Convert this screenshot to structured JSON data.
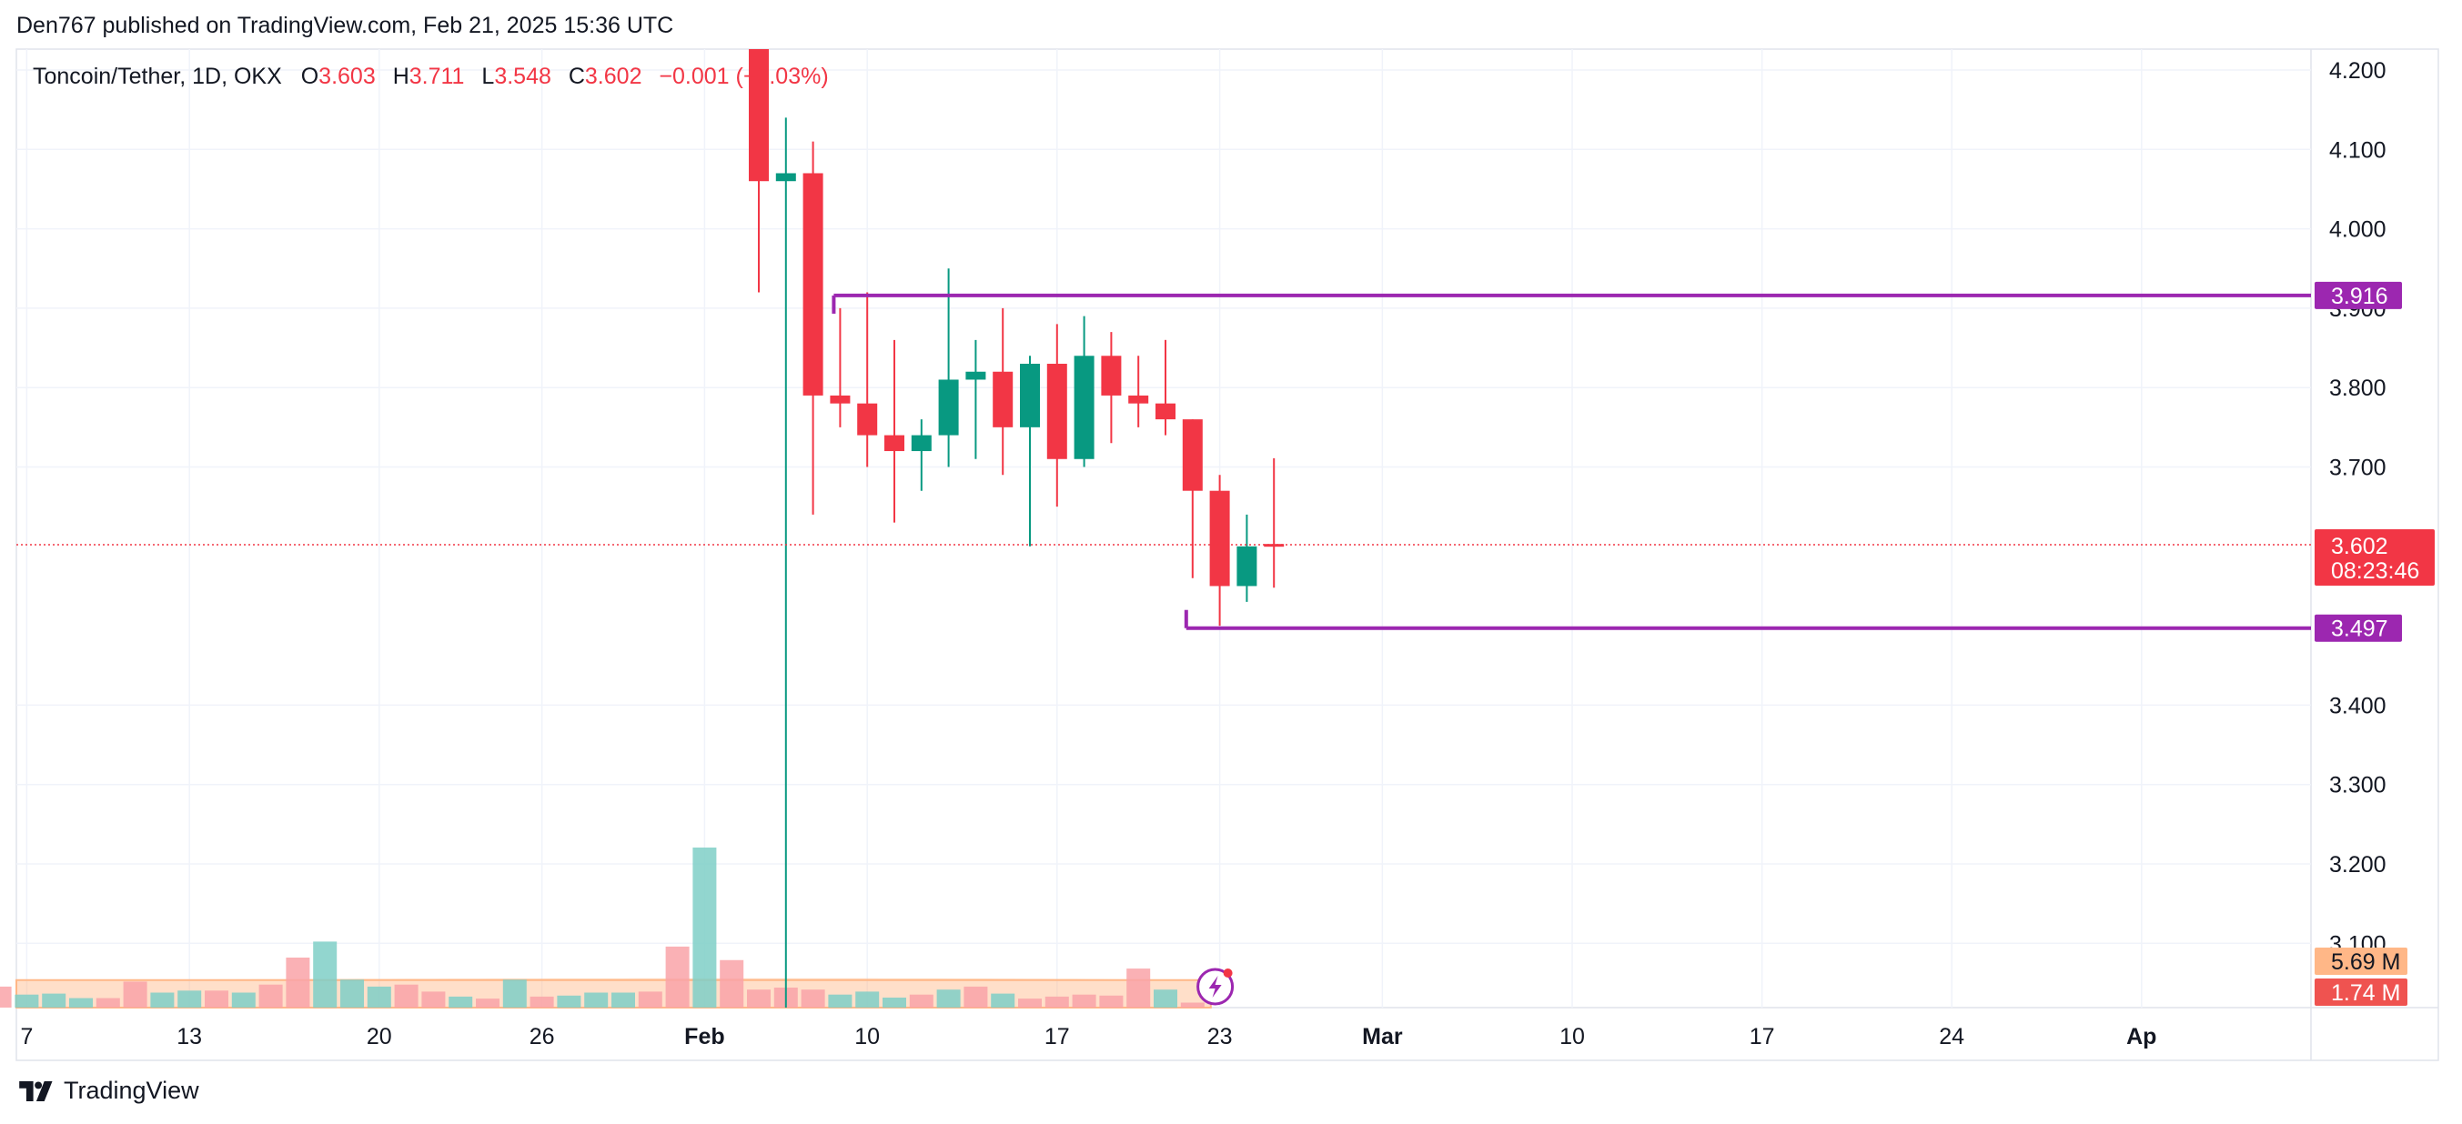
{
  "header": {
    "published": "Den767 published on TradingView.com, Feb 21, 2025 15:36 UTC"
  },
  "legend": {
    "symbol": "Toncoin/Tether, 1D, OKX",
    "o_label": "O",
    "o_value": "3.603",
    "h_label": "H",
    "h_value": "3.711",
    "l_label": "L",
    "l_value": "3.548",
    "c_label": "C",
    "c_value": "3.602",
    "change": "−0.001 (−0.03%)"
  },
  "footer": {
    "brand": "TradingView"
  },
  "colors": {
    "up": "#089981",
    "down": "#f23645",
    "level": "#9c27b0",
    "vol_up": "#7fcfc7",
    "vol_down": "#f9a3a8",
    "vol_ma": "#ffb787"
  },
  "chart_data": {
    "type": "candlestick",
    "symbol": "Toncoin/Tether",
    "interval": "1D",
    "exchange": "OKX",
    "y_ticks": [
      "4.200",
      "4.100",
      "4.000",
      "3.900",
      "3.800",
      "3.700",
      "3.400",
      "3.300",
      "3.200",
      "3.100"
    ],
    "ylim": [
      3.07,
      4.23
    ],
    "x_ticks": [
      {
        "label": "7",
        "day": -27
      },
      {
        "label": "13",
        "day": -21
      },
      {
        "label": "20",
        "day": -14
      },
      {
        "label": "26",
        "day": -8
      },
      {
        "label": "Feb",
        "day": -2
      },
      {
        "label": "10",
        "day": 4
      },
      {
        "label": "17",
        "day": 11
      },
      {
        "label": "23",
        "day": 17
      },
      {
        "label": "Mar",
        "day": 23
      },
      {
        "label": "10",
        "day": 30
      },
      {
        "label": "17",
        "day": 37
      },
      {
        "label": "24",
        "day": 44
      },
      {
        "label": "Ap",
        "day": 51
      }
    ],
    "candles": [
      {
        "date": "2025-01-31",
        "o": 4.23,
        "h": 4.23,
        "l": 3.92,
        "c": 4.06
      },
      {
        "date": "2025-02-01",
        "o": 4.06,
        "h": 4.14,
        "l": 2.55,
        "c": 4.07
      },
      {
        "date": "2025-02-02",
        "o": 4.07,
        "h": 4.11,
        "l": 3.64,
        "c": 3.79
      },
      {
        "date": "2025-02-03",
        "o": 3.79,
        "h": 3.9,
        "l": 3.75,
        "c": 3.78
      },
      {
        "date": "2025-02-04",
        "o": 3.78,
        "h": 3.92,
        "l": 3.7,
        "c": 3.74
      },
      {
        "date": "2025-02-05",
        "o": 3.74,
        "h": 3.86,
        "l": 3.63,
        "c": 3.72
      },
      {
        "date": "2025-02-06",
        "o": 3.72,
        "h": 3.76,
        "l": 3.67,
        "c": 3.74
      },
      {
        "date": "2025-02-07",
        "o": 3.74,
        "h": 3.95,
        "l": 3.7,
        "c": 3.81
      },
      {
        "date": "2025-02-08",
        "o": 3.81,
        "h": 3.86,
        "l": 3.71,
        "c": 3.82
      },
      {
        "date": "2025-02-09",
        "o": 3.82,
        "h": 3.9,
        "l": 3.69,
        "c": 3.75
      },
      {
        "date": "2025-02-10",
        "o": 3.75,
        "h": 3.84,
        "l": 3.6,
        "c": 3.83
      },
      {
        "date": "2025-02-11",
        "o": 3.83,
        "h": 3.88,
        "l": 3.65,
        "c": 3.71
      },
      {
        "date": "2025-02-12",
        "o": 3.71,
        "h": 3.89,
        "l": 3.7,
        "c": 3.84
      },
      {
        "date": "2025-02-13",
        "o": 3.84,
        "h": 3.87,
        "l": 3.73,
        "c": 3.79
      },
      {
        "date": "2025-02-14",
        "o": 3.79,
        "h": 3.84,
        "l": 3.75,
        "c": 3.78
      },
      {
        "date": "2025-02-15",
        "o": 3.78,
        "h": 3.86,
        "l": 3.74,
        "c": 3.76
      },
      {
        "date": "2025-02-16",
        "o": 3.76,
        "h": 3.76,
        "l": 3.56,
        "c": 3.67
      },
      {
        "date": "2025-02-17",
        "o": 3.67,
        "h": 3.69,
        "l": 3.5,
        "c": 3.55
      },
      {
        "date": "2025-02-18",
        "o": 3.55,
        "h": 3.64,
        "l": 3.53,
        "c": 3.6
      },
      {
        "date": "2025-02-19",
        "o": 3.603,
        "h": 3.711,
        "l": 3.548,
        "c": 3.602
      }
    ],
    "volume": {
      "values": [
        {
          "day": -29,
          "v": 0.42,
          "up": false
        },
        {
          "day": -28,
          "v": 0.42,
          "up": false
        },
        {
          "day": -27,
          "v": 0.26,
          "up": true
        },
        {
          "day": -26,
          "v": 0.28,
          "up": true
        },
        {
          "day": -25,
          "v": 0.19,
          "up": true
        },
        {
          "day": -24,
          "v": 0.19,
          "up": false
        },
        {
          "day": -23,
          "v": 0.52,
          "up": false
        },
        {
          "day": -22,
          "v": 0.3,
          "up": true
        },
        {
          "day": -21,
          "v": 0.34,
          "up": true
        },
        {
          "day": -20,
          "v": 0.34,
          "up": false
        },
        {
          "day": -19,
          "v": 0.3,
          "up": true
        },
        {
          "day": -18,
          "v": 0.46,
          "up": false
        },
        {
          "day": -17,
          "v": 1.0,
          "up": false
        },
        {
          "day": -16,
          "v": 1.32,
          "up": true
        },
        {
          "day": -15,
          "v": 0.56,
          "up": true
        },
        {
          "day": -14,
          "v": 0.42,
          "up": true
        },
        {
          "day": -13,
          "v": 0.46,
          "up": false
        },
        {
          "day": -12,
          "v": 0.32,
          "up": false
        },
        {
          "day": -11,
          "v": 0.22,
          "up": true
        },
        {
          "day": -10,
          "v": 0.18,
          "up": false
        },
        {
          "day": -9,
          "v": 0.56,
          "up": true
        },
        {
          "day": -8,
          "v": 0.22,
          "up": false
        },
        {
          "day": -7,
          "v": 0.24,
          "up": true
        },
        {
          "day": -6,
          "v": 0.3,
          "up": true
        },
        {
          "day": -5,
          "v": 0.3,
          "up": true
        },
        {
          "day": -4,
          "v": 0.32,
          "up": false
        },
        {
          "day": -3,
          "v": 1.22,
          "up": false
        },
        {
          "day": -2,
          "v": 3.2,
          "up": true
        },
        {
          "day": -1,
          "v": 0.95,
          "up": false
        },
        {
          "day": 0,
          "v": 0.36,
          "up": false
        },
        {
          "day": 1,
          "v": 0.4,
          "up": false
        },
        {
          "day": 2,
          "v": 0.36,
          "up": false
        },
        {
          "day": 3,
          "v": 0.26,
          "up": true
        },
        {
          "day": 4,
          "v": 0.32,
          "up": true
        },
        {
          "day": 5,
          "v": 0.2,
          "up": true
        },
        {
          "day": 6,
          "v": 0.26,
          "up": false
        },
        {
          "day": 7,
          "v": 0.36,
          "up": true
        },
        {
          "day": 8,
          "v": 0.42,
          "up": false
        },
        {
          "day": 9,
          "v": 0.28,
          "up": true
        },
        {
          "day": 10,
          "v": 0.18,
          "up": false
        },
        {
          "day": 11,
          "v": 0.22,
          "up": false
        },
        {
          "day": 12,
          "v": 0.26,
          "up": false
        },
        {
          "day": 13,
          "v": 0.24,
          "up": false
        },
        {
          "day": 14,
          "v": 0.78,
          "up": false
        },
        {
          "day": 15,
          "v": 0.36,
          "up": true
        },
        {
          "day": 16,
          "v": 0.1,
          "up": false
        }
      ],
      "ma_level": 0.55,
      "ma_label": "5.69 M",
      "last_label": "1.74 M"
    },
    "levels": [
      {
        "value": 3.916,
        "label": "3.916",
        "start_day": 3
      },
      {
        "value": 3.497,
        "label": "3.497",
        "start_day": 16
      }
    ],
    "last_price": {
      "value": 3.602,
      "label": "3.602",
      "countdown": "08:23:46"
    }
  }
}
